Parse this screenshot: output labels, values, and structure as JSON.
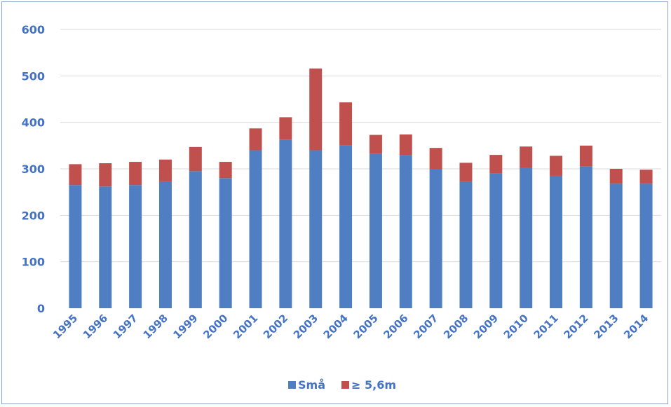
{
  "chart_data": {
    "type": "bar",
    "stacked": true,
    "categories": [
      "1995",
      "1996",
      "1997",
      "1998",
      "1999",
      "2000",
      "2001",
      "2002",
      "2003",
      "2004",
      "2005",
      "2006",
      "2007",
      "2008",
      "2009",
      "2010",
      "2011",
      "2012",
      "2013",
      "2014"
    ],
    "series": [
      {
        "name": "Små",
        "color": "#4f7fc2",
        "values": [
          265,
          262,
          265,
          273,
          295,
          280,
          340,
          363,
          340,
          350,
          333,
          330,
          300,
          273,
          290,
          303,
          285,
          305,
          268,
          268
        ]
      },
      {
        "name": "≥ 5,6m",
        "color": "#c0504d",
        "values": [
          45,
          50,
          50,
          47,
          52,
          35,
          47,
          48,
          176,
          93,
          40,
          44,
          45,
          40,
          40,
          45,
          43,
          45,
          32,
          30
        ]
      }
    ],
    "title": "",
    "xlabel": "",
    "ylabel": "",
    "ylim": [
      0,
      600
    ],
    "yticks": [
      "0",
      "100",
      "200",
      "300",
      "400",
      "500",
      "600"
    ],
    "grid": true,
    "legend_position": "bottom"
  }
}
